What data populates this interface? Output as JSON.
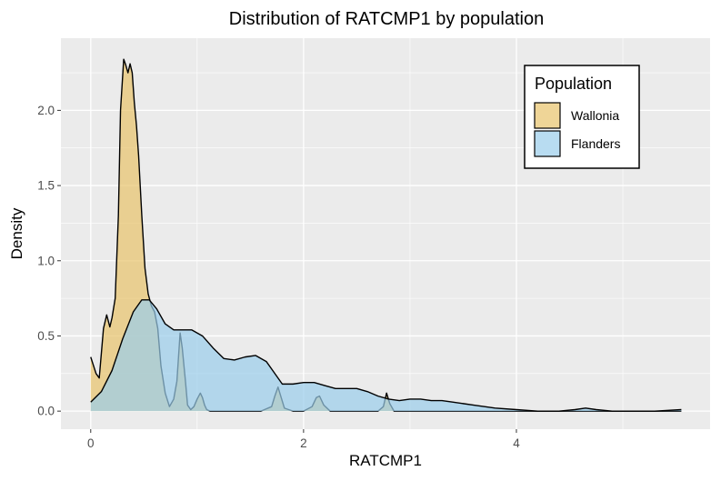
{
  "chart_data": {
    "type": "area",
    "subtype": "density",
    "title": "Distribution of RATCMP1 by population",
    "xlabel": "RATCMP1",
    "ylabel": "Density",
    "xlim": [
      -0.28,
      5.82
    ],
    "ylim": [
      -0.12,
      2.48
    ],
    "x_ticks": [
      0,
      2,
      4
    ],
    "y_ticks": [
      0.0,
      0.5,
      1.0,
      1.5,
      2.0
    ],
    "x_tick_labels": [
      "0",
      "2",
      "4"
    ],
    "y_tick_labels": [
      "0.0",
      "0.5",
      "1.0",
      "1.5",
      "2.0"
    ],
    "grid": true,
    "legend": {
      "title": "Population",
      "position": "top-right",
      "entries": [
        "Wallonia",
        "Flanders"
      ]
    },
    "series": [
      {
        "name": "Wallonia",
        "color": "#E8C36B",
        "x": [
          0.0,
          0.05,
          0.08,
          0.12,
          0.15,
          0.18,
          0.2,
          0.23,
          0.26,
          0.28,
          0.31,
          0.33,
          0.35,
          0.37,
          0.39,
          0.41,
          0.43,
          0.45,
          0.48,
          0.51,
          0.54,
          0.57,
          0.6,
          0.63,
          0.66,
          0.7,
          0.74,
          0.78,
          0.81,
          0.84,
          0.86,
          0.89,
          0.91,
          0.94,
          0.97,
          1.0,
          1.03,
          1.05,
          1.07,
          1.09,
          1.12,
          1.2,
          1.4,
          1.6,
          1.7,
          1.73,
          1.76,
          1.79,
          1.82,
          1.9,
          2.0,
          2.08,
          2.12,
          2.15,
          2.19,
          2.25,
          2.5,
          2.7,
          2.75,
          2.78,
          2.81,
          2.85,
          3.0,
          3.5,
          4.0,
          4.5,
          5.0,
          5.55
        ],
        "values": [
          0.36,
          0.25,
          0.22,
          0.55,
          0.64,
          0.56,
          0.62,
          0.75,
          1.3,
          2.0,
          2.34,
          2.3,
          2.25,
          2.31,
          2.25,
          2.05,
          1.9,
          1.7,
          1.3,
          0.95,
          0.78,
          0.7,
          0.66,
          0.55,
          0.3,
          0.12,
          0.03,
          0.08,
          0.2,
          0.52,
          0.42,
          0.2,
          0.04,
          0.01,
          0.03,
          0.08,
          0.12,
          0.09,
          0.04,
          0.01,
          0.0,
          0.0,
          0.0,
          0.0,
          0.03,
          0.1,
          0.16,
          0.09,
          0.02,
          0.0,
          0.0,
          0.03,
          0.09,
          0.1,
          0.04,
          0.0,
          0.0,
          0.0,
          0.03,
          0.12,
          0.05,
          0.0,
          0.0,
          0.0,
          0.0,
          0.0,
          0.0,
          0.0
        ]
      },
      {
        "name": "Flanders",
        "color": "#9ACDEB",
        "x": [
          0.0,
          0.1,
          0.2,
          0.3,
          0.4,
          0.48,
          0.55,
          0.62,
          0.7,
          0.78,
          0.85,
          0.95,
          1.05,
          1.15,
          1.25,
          1.35,
          1.45,
          1.55,
          1.65,
          1.72,
          1.8,
          1.9,
          2.0,
          2.1,
          2.2,
          2.3,
          2.4,
          2.5,
          2.6,
          2.7,
          2.8,
          2.9,
          3.0,
          3.1,
          3.2,
          3.3,
          3.4,
          3.5,
          3.6,
          3.7,
          3.8,
          4.0,
          4.2,
          4.4,
          4.55,
          4.65,
          4.75,
          4.9,
          5.1,
          5.3,
          5.55
        ],
        "values": [
          0.06,
          0.13,
          0.27,
          0.48,
          0.66,
          0.74,
          0.74,
          0.68,
          0.58,
          0.54,
          0.54,
          0.54,
          0.5,
          0.42,
          0.35,
          0.34,
          0.36,
          0.37,
          0.33,
          0.26,
          0.18,
          0.18,
          0.19,
          0.19,
          0.17,
          0.15,
          0.15,
          0.15,
          0.13,
          0.1,
          0.08,
          0.07,
          0.08,
          0.08,
          0.07,
          0.07,
          0.06,
          0.05,
          0.04,
          0.03,
          0.02,
          0.01,
          0.0,
          0.0,
          0.01,
          0.02,
          0.01,
          0.0,
          0.0,
          0.0,
          0.01
        ]
      }
    ]
  }
}
